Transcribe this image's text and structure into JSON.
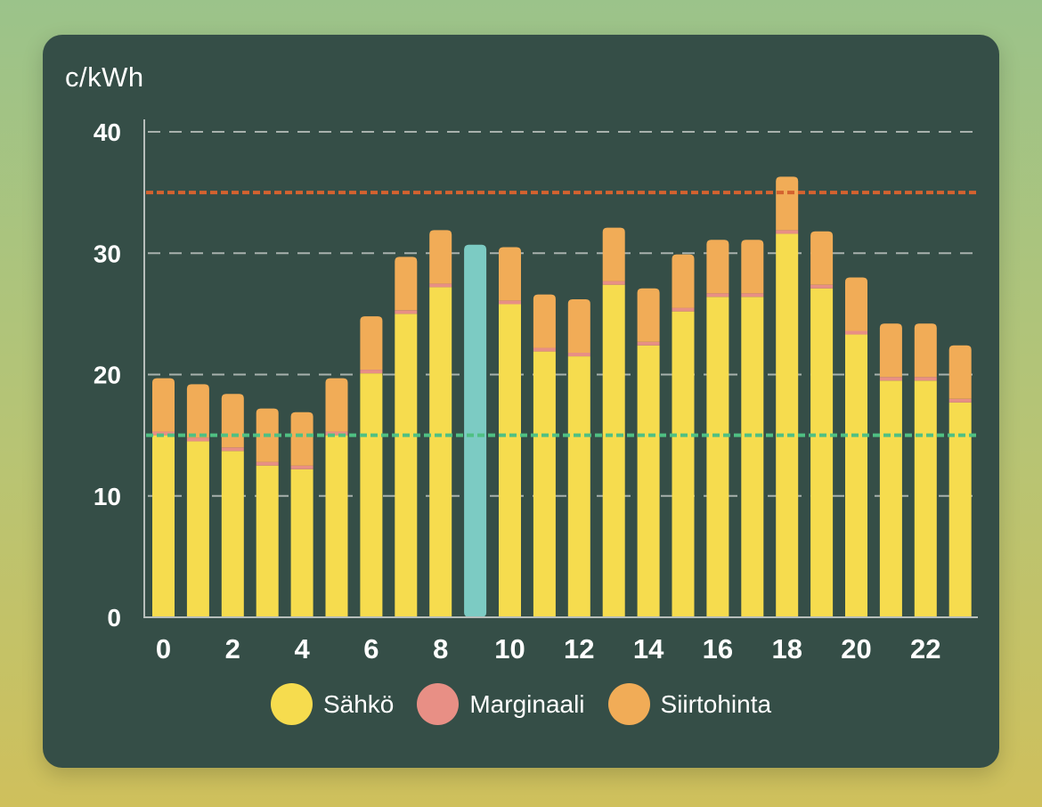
{
  "chart_data": {
    "type": "bar",
    "unit_label": "c/kWh",
    "x_tick_labels": [
      "0",
      "2",
      "4",
      "6",
      "8",
      "10",
      "12",
      "14",
      "16",
      "18",
      "20",
      "22"
    ],
    "y_tick_labels": [
      "0",
      "10",
      "20",
      "30",
      "40"
    ],
    "ylim": [
      0,
      40
    ],
    "y_ticks": [
      0,
      10,
      20,
      30,
      40
    ],
    "categories": [
      0,
      1,
      2,
      3,
      4,
      5,
      6,
      7,
      8,
      9,
      10,
      11,
      12,
      13,
      14,
      15,
      16,
      17,
      18,
      19,
      20,
      21,
      22,
      23
    ],
    "series": [
      {
        "name": "Sähkö",
        "color": "#f6dc4e",
        "values": [
          15.0,
          14.5,
          13.7,
          12.5,
          12.2,
          15.0,
          20.1,
          25.0,
          27.2,
          26.0,
          25.8,
          21.9,
          21.5,
          27.4,
          22.4,
          25.2,
          26.4,
          26.4,
          31.6,
          27.1,
          23.3,
          19.5,
          19.5,
          17.7
        ]
      },
      {
        "name": "Marginaali",
        "color": "#e88f85",
        "values": [
          0.3,
          0.3,
          0.3,
          0.3,
          0.3,
          0.3,
          0.3,
          0.3,
          0.3,
          0.3,
          0.3,
          0.3,
          0.3,
          0.3,
          0.3,
          0.3,
          0.3,
          0.3,
          0.3,
          0.3,
          0.3,
          0.3,
          0.3,
          0.3
        ]
      },
      {
        "name": "Siirtohinta",
        "color": "#f1ac57",
        "values": [
          4.4,
          4.4,
          4.4,
          4.4,
          4.4,
          4.4,
          4.4,
          4.4,
          4.4,
          4.4,
          4.4,
          4.4,
          4.4,
          4.4,
          4.4,
          4.4,
          4.4,
          4.4,
          4.4,
          4.4,
          4.4,
          4.4,
          4.4,
          4.4
        ]
      }
    ],
    "highlight_index": 9,
    "highlight_color": "#7ccbc3",
    "reference_lines": [
      {
        "value": 35,
        "color": "#d4622f"
      },
      {
        "value": 15,
        "color": "#4fc083"
      }
    ],
    "grid_color": "#a8b1ad",
    "axis_color": "#b7bebb",
    "label_color": "#ffffff"
  }
}
